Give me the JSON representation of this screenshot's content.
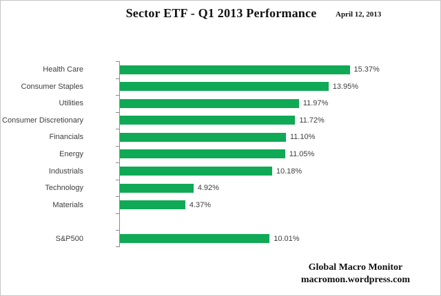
{
  "header": {
    "title": "Sector ETF - Q1 2013 Performance",
    "date": "April 12, 2013"
  },
  "footer": {
    "line1": "Global Macro Monitor",
    "line2": "macromon.wordpress.com"
  },
  "chart_data": {
    "type": "bar",
    "orientation": "horizontal",
    "title": "Sector ETF - Q1 2013 Performance",
    "categories": [
      "Health Care",
      "Consumer Staples",
      "Utilities",
      "Consumer Discretionary",
      "Financials",
      "Energy",
      "Industrials",
      "Technology",
      "Materials",
      "",
      "S&P500"
    ],
    "values": [
      15.37,
      13.95,
      11.97,
      11.72,
      11.1,
      11.05,
      10.18,
      4.92,
      4.37,
      null,
      10.01
    ],
    "value_labels": [
      "15.37%",
      "13.95%",
      "11.97%",
      "11.72%",
      "11.10%",
      "11.05%",
      "10.18%",
      "4.92%",
      "4.37%",
      null,
      "10.01%"
    ],
    "xlim": [
      0,
      20
    ],
    "grid": false,
    "legend": false,
    "bar_color": "#10a956",
    "axis_color": "#8a8a8a",
    "label_color": "#3d3d3d"
  }
}
